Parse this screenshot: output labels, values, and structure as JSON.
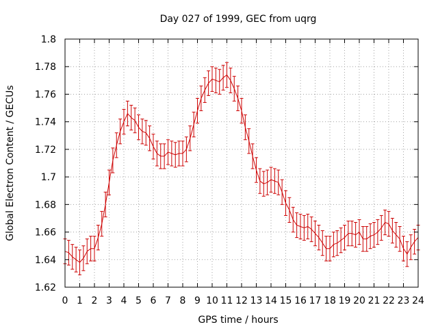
{
  "chart_data": {
    "type": "line",
    "title": "Day 027 of 1999, GEC from uqrg",
    "xlabel": "GPS time / hours",
    "ylabel": "Global Electron Content / GECUs",
    "xlim": [
      0,
      24
    ],
    "ylim": [
      1.62,
      1.8
    ],
    "xticks": [
      0,
      1,
      2,
      3,
      4,
      5,
      6,
      7,
      8,
      9,
      10,
      11,
      12,
      13,
      14,
      15,
      16,
      17,
      18,
      19,
      20,
      21,
      22,
      23,
      24
    ],
    "yticks": [
      1.62,
      1.64,
      1.66,
      1.68,
      1.7,
      1.72,
      1.74,
      1.76,
      1.78,
      1.8
    ],
    "ytick_labels": [
      "1.62",
      "1.64",
      "1.66",
      "1.68",
      "1.7",
      "1.72",
      "1.74",
      "1.76",
      "1.78",
      "1.8"
    ],
    "grid": true,
    "series": [
      {
        "name": "GEC",
        "color": "#cc0000",
        "error": 0.009,
        "x": [
          0,
          0.25,
          0.5,
          0.75,
          1,
          1.25,
          1.5,
          1.75,
          2,
          2.25,
          2.5,
          2.75,
          3,
          3.25,
          3.5,
          3.75,
          4,
          4.25,
          4.5,
          4.75,
          5,
          5.25,
          5.5,
          5.75,
          6,
          6.25,
          6.5,
          6.75,
          7,
          7.25,
          7.5,
          7.75,
          8,
          8.25,
          8.5,
          8.75,
          9,
          9.25,
          9.5,
          9.75,
          10,
          10.25,
          10.5,
          10.75,
          11,
          11.25,
          11.5,
          11.75,
          12,
          12.25,
          12.5,
          12.75,
          13,
          13.25,
          13.5,
          13.75,
          14,
          14.25,
          14.5,
          14.75,
          15,
          15.25,
          15.5,
          15.75,
          16,
          16.25,
          16.5,
          16.75,
          17,
          17.25,
          17.5,
          17.75,
          18,
          18.25,
          18.5,
          18.75,
          19,
          19.25,
          19.5,
          19.75,
          20,
          20.25,
          20.5,
          20.75,
          21,
          21.25,
          21.5,
          21.75,
          22,
          22.25,
          22.5,
          22.75,
          23,
          23.25,
          23.5,
          23.75,
          24
        ],
        "y": [
          1.646,
          1.645,
          1.642,
          1.64,
          1.638,
          1.641,
          1.646,
          1.648,
          1.648,
          1.656,
          1.666,
          1.68,
          1.696,
          1.712,
          1.723,
          1.733,
          1.74,
          1.746,
          1.743,
          1.741,
          1.736,
          1.733,
          1.732,
          1.728,
          1.722,
          1.717,
          1.715,
          1.715,
          1.718,
          1.717,
          1.716,
          1.717,
          1.717,
          1.72,
          1.728,
          1.738,
          1.748,
          1.757,
          1.763,
          1.768,
          1.771,
          1.77,
          1.769,
          1.772,
          1.774,
          1.77,
          1.764,
          1.757,
          1.748,
          1.736,
          1.726,
          1.715,
          1.705,
          1.697,
          1.695,
          1.696,
          1.698,
          1.697,
          1.696,
          1.689,
          1.681,
          1.676,
          1.669,
          1.665,
          1.664,
          1.663,
          1.664,
          1.662,
          1.659,
          1.656,
          1.652,
          1.648,
          1.648,
          1.651,
          1.652,
          1.654,
          1.656,
          1.659,
          1.659,
          1.658,
          1.66,
          1.655,
          1.655,
          1.657,
          1.658,
          1.66,
          1.663,
          1.667,
          1.666,
          1.661,
          1.658,
          1.655,
          1.648,
          1.644,
          1.649,
          1.653,
          1.656
        ]
      }
    ]
  }
}
